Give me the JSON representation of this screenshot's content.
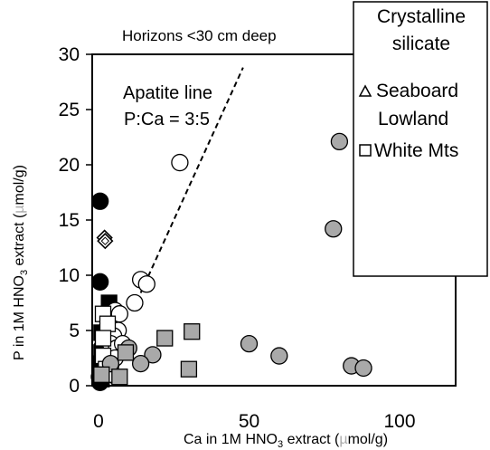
{
  "chart_data": {
    "type": "scatter",
    "title": "Horizons <30 cm deep",
    "xlabel_parts": [
      "Ca in 1M HNO",
      "3",
      " extract (",
      "µ",
      "mol/g)"
    ],
    "ylabel_parts": [
      "P in 1M HNO",
      "3",
      " extract (",
      "µ",
      "mol/g)"
    ],
    "xlim": [
      0,
      100
    ],
    "ylim": [
      0,
      30
    ],
    "x_ticks": [
      "0",
      "50",
      "100"
    ],
    "y_ticks": [
      "0",
      "5",
      "10",
      "15",
      "20",
      "25",
      "30"
    ],
    "grid": false,
    "annotation_lines": [
      "Apatite line",
      "P:Ca = 3:5"
    ],
    "reference_line": {
      "label": "Apatite line",
      "slope": 0.6,
      "style": "dashed"
    },
    "legend": {
      "placement": "top-right",
      "entries": [
        {
          "label": "Crystalline silicate",
          "lines": [
            "Crystalline",
            "silicate"
          ],
          "marker": "none"
        },
        {
          "label": "Seaboard Lowland",
          "lines": [
            "Seaboard",
            "Lowland"
          ],
          "marker": "triangle"
        },
        {
          "label": "White Mts",
          "lines": [
            "White Mts"
          ],
          "marker": "square"
        }
      ]
    },
    "series": [
      {
        "marker": "circle",
        "fill": "#000000",
        "points": [
          [
            0.5,
            16.7
          ],
          [
            0.5,
            9.4
          ],
          [
            0.3,
            0.8
          ],
          [
            0.5,
            0.3
          ],
          [
            0.8,
            1.6
          ],
          [
            1.0,
            2.3
          ],
          [
            1.2,
            3.5
          ]
        ]
      },
      {
        "marker": "square",
        "fill": "#000000",
        "points": [
          [
            3.5,
            7.5
          ],
          [
            1.0,
            4.8
          ],
          [
            2.5,
            4.5
          ],
          [
            3.2,
            3.8
          ],
          [
            1.0,
            3.0
          ],
          [
            0.8,
            2.0
          ],
          [
            1.0,
            1.2
          ],
          [
            1.0,
            0.6
          ]
        ]
      },
      {
        "marker": "diamond-outline",
        "fill": "#ffffff",
        "points": [
          [
            2.0,
            13.4
          ],
          [
            2.2,
            13.1
          ],
          [
            2.0,
            2.5
          ]
        ]
      },
      {
        "marker": "circle-outline",
        "fill": "#ffffff",
        "points": [
          [
            27.0,
            20.2
          ],
          [
            14.0,
            9.6
          ],
          [
            16.0,
            9.2
          ],
          [
            12.0,
            7.5
          ],
          [
            5.5,
            6.8
          ],
          [
            7.0,
            6.5
          ],
          [
            6.5,
            5.0
          ],
          [
            5.0,
            4.5
          ],
          [
            4.0,
            3.8
          ],
          [
            6.0,
            3.4
          ],
          [
            8.0,
            3.8
          ],
          [
            5.5,
            2.5
          ],
          [
            4.0,
            1.8
          ],
          [
            3.5,
            1.2
          ],
          [
            6.0,
            0.8
          ]
        ]
      },
      {
        "marker": "square-outline",
        "fill": "#ffffff",
        "points": [
          [
            1.5,
            6.5
          ],
          [
            3.0,
            5.6
          ],
          [
            1.5,
            4.3
          ],
          [
            1.5,
            2.7
          ],
          [
            2.5,
            1.5
          ],
          [
            3.0,
            1.0
          ]
        ]
      },
      {
        "marker": "circle",
        "fill": "#a9a9a9",
        "points": [
          [
            80.0,
            22.1
          ],
          [
            78.0,
            14.2
          ],
          [
            50.0,
            3.8
          ],
          [
            60.0,
            2.7
          ],
          [
            84.0,
            1.8
          ],
          [
            88.0,
            1.6
          ],
          [
            18.0,
            2.8
          ],
          [
            14.0,
            2.0
          ],
          [
            10.0,
            3.4
          ],
          [
            4.0,
            2.0
          ]
        ]
      },
      {
        "marker": "square",
        "fill": "#a9a9a9",
        "points": [
          [
            31.0,
            4.9
          ],
          [
            22.0,
            4.3
          ],
          [
            30.0,
            1.5
          ],
          [
            7.0,
            0.8
          ],
          [
            9.0,
            3.0
          ],
          [
            1.0,
            1.0
          ]
        ]
      }
    ]
  }
}
